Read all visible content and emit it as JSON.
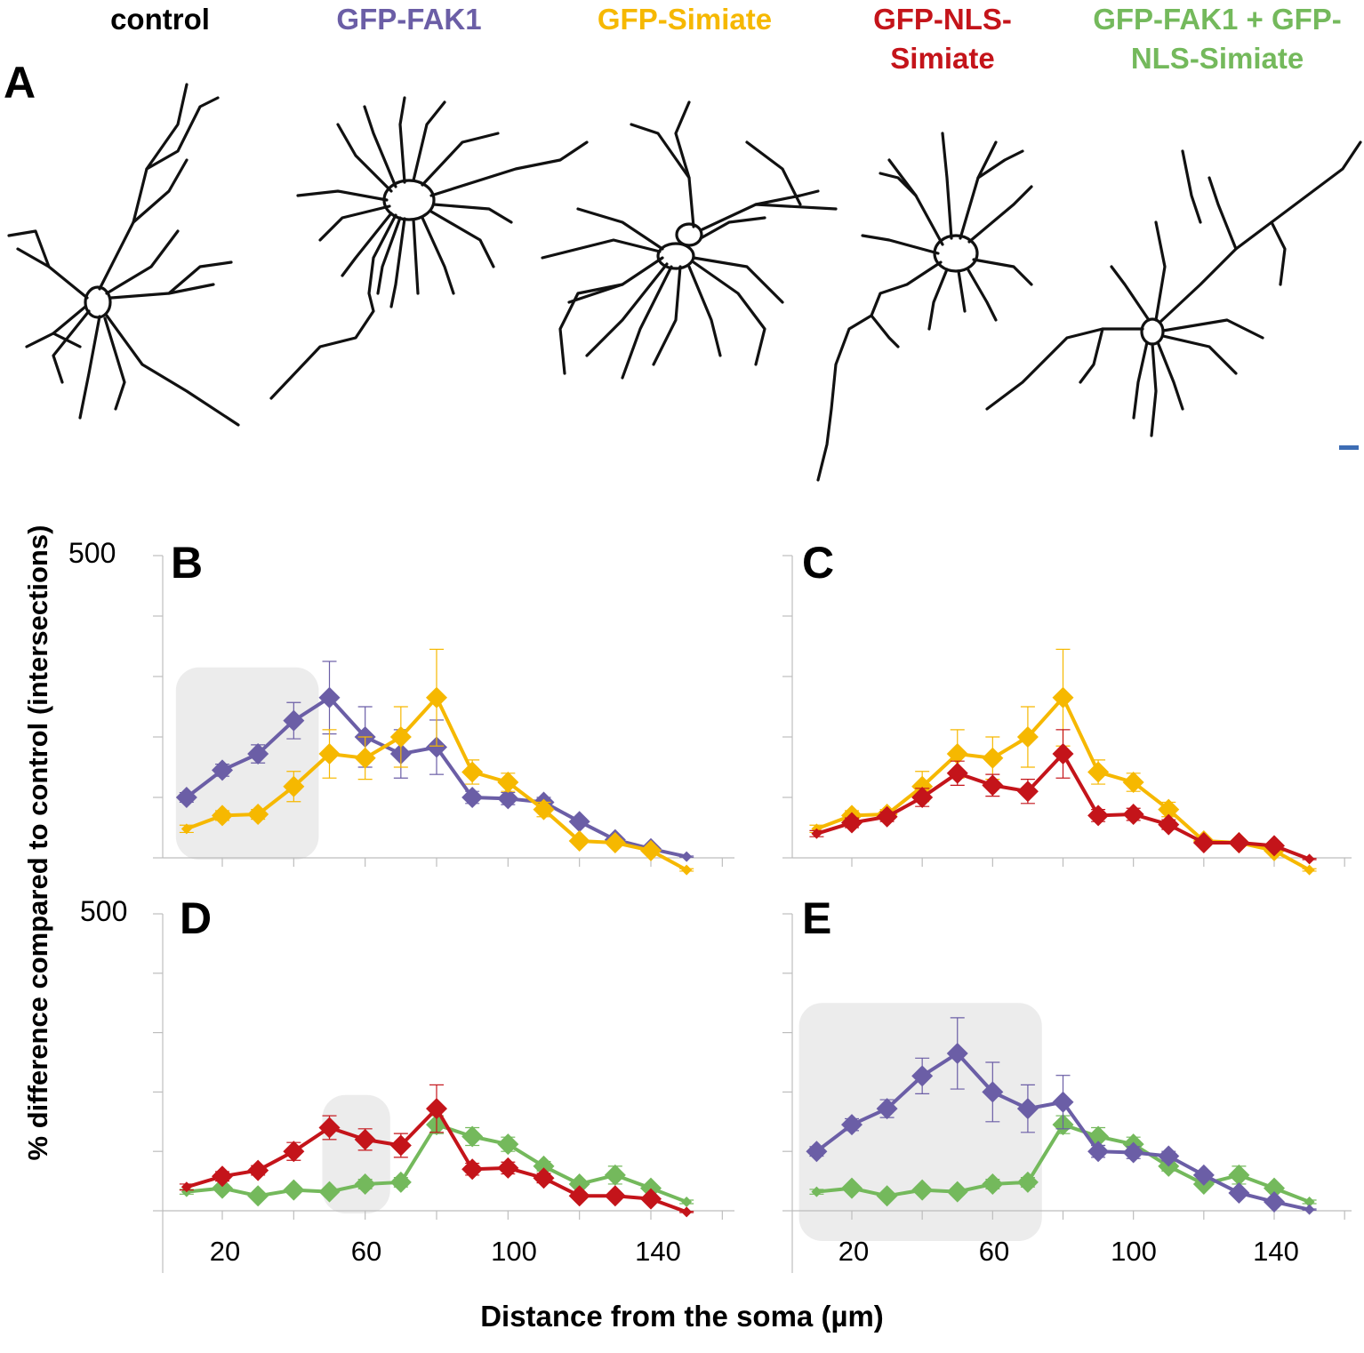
{
  "colors": {
    "control": "#000000",
    "fak1": "#6b5ea6",
    "simiate": "#f6b800",
    "nls": "#c4141a",
    "combo": "#74b95c",
    "highlight": "#ececec",
    "axis": "#bdbdbd",
    "scalebar": "#3d6db4"
  },
  "conditions": {
    "control": "control",
    "fak1": "GFP-FAK1",
    "simiate": "GFP-Simiate",
    "nls_line1": "GFP-NLS-",
    "nls_line2": "Simiate",
    "combo_line1": "GFP-FAK1 + GFP-",
    "combo_line2": "NLS-Simiate"
  },
  "panels": {
    "a": "A",
    "b": "B",
    "c": "C",
    "d": "D",
    "e": "E"
  },
  "axes": {
    "y_label": "% difference compared to control  (intersections)",
    "x_label": "Distance from the soma (µm)",
    "y_tick_top": "500",
    "y_tick_bottom": "500",
    "x_ticks": [
      "20",
      "60",
      "100",
      "140"
    ]
  },
  "chart_data": [
    {
      "panel": "B",
      "type": "line",
      "ylim": [
        0,
        500
      ],
      "xlim": [
        0,
        160
      ],
      "x": [
        10,
        20,
        30,
        40,
        50,
        60,
        70,
        80,
        90,
        100,
        110,
        120,
        130,
        140,
        150
      ],
      "highlight_x": [
        7,
        47
      ],
      "series": [
        {
          "name": "GFP-FAK1",
          "color_key": "fak1",
          "values": [
            100,
            145,
            172,
            227,
            265,
            200,
            172,
            183,
            100,
            98,
            92,
            60,
            30,
            15,
            2
          ],
          "errors": [
            8,
            10,
            15,
            30,
            60,
            50,
            40,
            45,
            10,
            10,
            8,
            5,
            3,
            2,
            1
          ]
        },
        {
          "name": "GFP-Simiate",
          "color_key": "simiate",
          "values": [
            48,
            70,
            72,
            118,
            172,
            165,
            200,
            265,
            142,
            125,
            80,
            28,
            25,
            12,
            -20
          ],
          "errors": [
            6,
            8,
            8,
            25,
            40,
            35,
            50,
            80,
            20,
            15,
            12,
            5,
            5,
            3,
            2
          ]
        }
      ]
    },
    {
      "panel": "C",
      "type": "line",
      "ylim": [
        0,
        500
      ],
      "xlim": [
        0,
        160
      ],
      "x": [
        10,
        20,
        30,
        40,
        50,
        60,
        70,
        80,
        90,
        100,
        110,
        120,
        130,
        140,
        150
      ],
      "series": [
        {
          "name": "GFP-Simiate",
          "color_key": "simiate",
          "values": [
            48,
            70,
            72,
            118,
            172,
            165,
            200,
            265,
            142,
            125,
            80,
            28,
            25,
            12,
            -20
          ],
          "errors": [
            6,
            8,
            8,
            25,
            40,
            35,
            50,
            80,
            20,
            15,
            12,
            5,
            5,
            3,
            2
          ]
        },
        {
          "name": "GFP-NLS-Simiate",
          "color_key": "nls",
          "values": [
            40,
            58,
            68,
            100,
            140,
            120,
            110,
            172,
            70,
            72,
            55,
            25,
            25,
            20,
            -2
          ],
          "errors": [
            5,
            8,
            8,
            15,
            20,
            18,
            20,
            40,
            10,
            10,
            8,
            4,
            4,
            3,
            1
          ]
        }
      ]
    },
    {
      "panel": "D",
      "type": "line",
      "ylim": [
        0,
        500
      ],
      "xlim": [
        0,
        160
      ],
      "x": [
        10,
        20,
        30,
        40,
        50,
        60,
        70,
        80,
        90,
        100,
        110,
        120,
        130,
        140,
        150
      ],
      "highlight_x": [
        48,
        67
      ],
      "series": [
        {
          "name": "GFP-FAK1 + GFP-NLS-Simiate",
          "color_key": "combo",
          "values": [
            32,
            38,
            25,
            35,
            32,
            45,
            48,
            145,
            125,
            112,
            75,
            45,
            60,
            38,
            15
          ],
          "errors": [
            4,
            5,
            4,
            5,
            5,
            8,
            8,
            15,
            15,
            12,
            8,
            5,
            15,
            5,
            3
          ]
        },
        {
          "name": "GFP-NLS-Simiate",
          "color_key": "nls",
          "values": [
            40,
            58,
            68,
            100,
            140,
            120,
            110,
            172,
            70,
            72,
            55,
            25,
            25,
            20,
            -2
          ],
          "errors": [
            5,
            8,
            8,
            15,
            20,
            18,
            20,
            40,
            10,
            10,
            8,
            4,
            4,
            3,
            1
          ]
        }
      ]
    },
    {
      "panel": "E",
      "type": "line",
      "ylim": [
        0,
        500
      ],
      "xlim": [
        0,
        160
      ],
      "x": [
        10,
        20,
        30,
        40,
        50,
        60,
        70,
        80,
        90,
        100,
        110,
        120,
        130,
        140,
        150
      ],
      "highlight_x": [
        5,
        74
      ],
      "series": [
        {
          "name": "GFP-FAK1 + GFP-NLS-Simiate",
          "color_key": "combo",
          "values": [
            32,
            38,
            25,
            35,
            32,
            45,
            48,
            145,
            125,
            112,
            75,
            45,
            60,
            38,
            15
          ],
          "errors": [
            4,
            5,
            4,
            5,
            5,
            8,
            8,
            15,
            15,
            12,
            8,
            5,
            15,
            5,
            3
          ]
        },
        {
          "name": "GFP-FAK1",
          "color_key": "fak1",
          "values": [
            100,
            145,
            172,
            227,
            265,
            200,
            172,
            183,
            100,
            98,
            92,
            60,
            30,
            15,
            2
          ],
          "errors": [
            8,
            10,
            15,
            30,
            60,
            50,
            40,
            45,
            10,
            10,
            8,
            5,
            3,
            2,
            1
          ]
        }
      ]
    }
  ]
}
